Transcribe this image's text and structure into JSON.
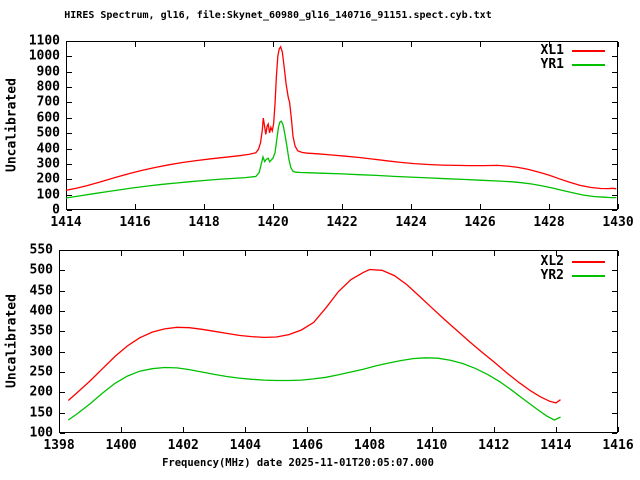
{
  "title": "HIRES Spectrum, gl16, file:Skynet_60980_gl16_140716_91151.spect.cyb.txt",
  "xlabel": "Frequency(MHz) date 2025-11-01T20:05:07.000",
  "colors": {
    "background": "#ffffff",
    "axis": "#000000",
    "text": "#000000",
    "series_red": "#ff0000",
    "series_green": "#00c000"
  },
  "chart_data": [
    {
      "type": "line",
      "title": "",
      "xlabel": "",
      "ylabel": "Uncalibrated",
      "xlim": [
        1414,
        1430
      ],
      "ylim": [
        0,
        1100
      ],
      "xticks": [
        1414,
        1416,
        1418,
        1420,
        1422,
        1424,
        1426,
        1428,
        1430
      ],
      "yticks": [
        0,
        100,
        200,
        300,
        400,
        500,
        600,
        700,
        800,
        900,
        1000,
        1100
      ],
      "grid": false,
      "legend_position": "top-right",
      "series": [
        {
          "name": "XL1",
          "color": "#ff0000",
          "points": [
            [
              1414.0,
              128
            ],
            [
              1414.3,
              141
            ],
            [
              1414.6,
              158
            ],
            [
              1415.0,
              183
            ],
            [
              1415.4,
              210
            ],
            [
              1415.8,
              235
            ],
            [
              1416.2,
              258
            ],
            [
              1416.6,
              277
            ],
            [
              1417.0,
              295
            ],
            [
              1417.4,
              310
            ],
            [
              1417.8,
              322
            ],
            [
              1418.2,
              333
            ],
            [
              1418.6,
              343
            ],
            [
              1419.0,
              353
            ],
            [
              1419.3,
              362
            ],
            [
              1419.5,
              372
            ],
            [
              1419.58,
              395
            ],
            [
              1419.64,
              440
            ],
            [
              1419.69,
              520
            ],
            [
              1419.72,
              598
            ],
            [
              1419.76,
              540
            ],
            [
              1419.79,
              492
            ],
            [
              1419.83,
              545
            ],
            [
              1419.86,
              560
            ],
            [
              1419.9,
              502
            ],
            [
              1419.94,
              538
            ],
            [
              1419.98,
              515
            ],
            [
              1420.02,
              565
            ],
            [
              1420.06,
              700
            ],
            [
              1420.1,
              870
            ],
            [
              1420.14,
              1000
            ],
            [
              1420.18,
              1048
            ],
            [
              1420.22,
              1062
            ],
            [
              1420.27,
              1030
            ],
            [
              1420.32,
              940
            ],
            [
              1420.38,
              820
            ],
            [
              1420.44,
              735
            ],
            [
              1420.48,
              700
            ],
            [
              1420.53,
              600
            ],
            [
              1420.58,
              480
            ],
            [
              1420.64,
              415
            ],
            [
              1420.72,
              385
            ],
            [
              1420.85,
              374
            ],
            [
              1421.0,
              370
            ],
            [
              1421.3,
              366
            ],
            [
              1421.7,
              358
            ],
            [
              1422.1,
              350
            ],
            [
              1422.5,
              342
            ],
            [
              1422.9,
              331
            ],
            [
              1423.3,
              320
            ],
            [
              1423.7,
              310
            ],
            [
              1424.1,
              302
            ],
            [
              1424.5,
              296
            ],
            [
              1424.9,
              292
            ],
            [
              1425.3,
              290
            ],
            [
              1425.7,
              289
            ],
            [
              1426.1,
              289
            ],
            [
              1426.5,
              290
            ],
            [
              1426.8,
              286
            ],
            [
              1427.1,
              277
            ],
            [
              1427.4,
              264
            ],
            [
              1427.7,
              247
            ],
            [
              1428.0,
              227
            ],
            [
              1428.3,
              203
            ],
            [
              1428.6,
              180
            ],
            [
              1428.9,
              160
            ],
            [
              1429.2,
              147
            ],
            [
              1429.5,
              140
            ],
            [
              1429.7,
              139
            ],
            [
              1429.85,
              141
            ],
            [
              1429.95,
              138
            ]
          ]
        },
        {
          "name": "YR1",
          "color": "#00c000",
          "points": [
            [
              1414.0,
              78
            ],
            [
              1414.4,
              92
            ],
            [
              1414.8,
              106
            ],
            [
              1415.2,
              120
            ],
            [
              1415.6,
              133
            ],
            [
              1416.0,
              146
            ],
            [
              1416.4,
              157
            ],
            [
              1416.8,
              167
            ],
            [
              1417.2,
              176
            ],
            [
              1417.6,
              184
            ],
            [
              1418.0,
              192
            ],
            [
              1418.4,
              199
            ],
            [
              1418.8,
              205
            ],
            [
              1419.2,
              211
            ],
            [
              1419.5,
              218
            ],
            [
              1419.6,
              245
            ],
            [
              1419.66,
              300
            ],
            [
              1419.71,
              345
            ],
            [
              1419.76,
              315
            ],
            [
              1419.81,
              330
            ],
            [
              1419.86,
              337
            ],
            [
              1419.9,
              314
            ],
            [
              1419.95,
              326
            ],
            [
              1420.0,
              338
            ],
            [
              1420.06,
              375
            ],
            [
              1420.11,
              460
            ],
            [
              1420.16,
              540
            ],
            [
              1420.2,
              572
            ],
            [
              1420.24,
              578
            ],
            [
              1420.29,
              555
            ],
            [
              1420.34,
              500
            ],
            [
              1420.4,
              420
            ],
            [
              1420.46,
              330
            ],
            [
              1420.52,
              275
            ],
            [
              1420.58,
              252
            ],
            [
              1420.66,
              246
            ],
            [
              1420.8,
              244
            ],
            [
              1421.1,
              242
            ],
            [
              1421.5,
              239
            ],
            [
              1422.0,
              235
            ],
            [
              1422.5,
              230
            ],
            [
              1423.0,
              225
            ],
            [
              1423.5,
              219
            ],
            [
              1424.0,
              214
            ],
            [
              1424.5,
              209
            ],
            [
              1425.0,
              204
            ],
            [
              1425.5,
              199
            ],
            [
              1426.0,
              194
            ],
            [
              1426.5,
              189
            ],
            [
              1426.9,
              184
            ],
            [
              1427.2,
              178
            ],
            [
              1427.5,
              169
            ],
            [
              1427.8,
              157
            ],
            [
              1428.1,
              143
            ],
            [
              1428.4,
              127
            ],
            [
              1428.7,
              111
            ],
            [
              1429.0,
              97
            ],
            [
              1429.3,
              88
            ],
            [
              1429.6,
              83
            ],
            [
              1429.8,
              81
            ],
            [
              1429.95,
              81
            ]
          ]
        }
      ]
    },
    {
      "type": "line",
      "title": "",
      "xlabel": "Frequency(MHz) date 2025-11-01T20:05:07.000",
      "ylabel": "Uncalibrated",
      "xlim": [
        1398,
        1416
      ],
      "ylim": [
        100,
        550
      ],
      "xticks": [
        1398,
        1400,
        1402,
        1404,
        1406,
        1408,
        1410,
        1412,
        1414,
        1416
      ],
      "yticks": [
        100,
        150,
        200,
        250,
        300,
        350,
        400,
        450,
        500,
        550
      ],
      "grid": false,
      "legend_position": "top-right",
      "series": [
        {
          "name": "XL2",
          "color": "#ff0000",
          "points": [
            [
              1398.3,
              180
            ],
            [
              1398.6,
              200
            ],
            [
              1399.0,
              228
            ],
            [
              1399.4,
              258
            ],
            [
              1399.8,
              288
            ],
            [
              1400.2,
              314
            ],
            [
              1400.6,
              334
            ],
            [
              1401.0,
              348
            ],
            [
              1401.4,
              356
            ],
            [
              1401.8,
              360
            ],
            [
              1402.2,
              359
            ],
            [
              1402.6,
              355
            ],
            [
              1403.0,
              350
            ],
            [
              1403.4,
              345
            ],
            [
              1403.8,
              340
            ],
            [
              1404.2,
              337
            ],
            [
              1404.6,
              335
            ],
            [
              1405.0,
              336
            ],
            [
              1405.4,
              342
            ],
            [
              1405.8,
              353
            ],
            [
              1406.2,
              372
            ],
            [
              1406.6,
              408
            ],
            [
              1407.0,
              448
            ],
            [
              1407.4,
              477
            ],
            [
              1407.8,
              495
            ],
            [
              1408.0,
              502
            ],
            [
              1408.4,
              500
            ],
            [
              1408.8,
              487
            ],
            [
              1409.2,
              465
            ],
            [
              1409.6,
              437
            ],
            [
              1410.0,
              408
            ],
            [
              1410.4,
              380
            ],
            [
              1410.8,
              353
            ],
            [
              1411.2,
              326
            ],
            [
              1411.6,
              300
            ],
            [
              1412.0,
              275
            ],
            [
              1412.4,
              249
            ],
            [
              1412.8,
              225
            ],
            [
              1413.2,
              203
            ],
            [
              1413.5,
              189
            ],
            [
              1413.8,
              178
            ],
            [
              1414.0,
              174
            ],
            [
              1414.15,
              182
            ]
          ]
        },
        {
          "name": "YR2",
          "color": "#00c000",
          "points": [
            [
              1398.3,
              132
            ],
            [
              1398.6,
              148
            ],
            [
              1399.0,
              172
            ],
            [
              1399.4,
              198
            ],
            [
              1399.8,
              222
            ],
            [
              1400.2,
              240
            ],
            [
              1400.6,
              252
            ],
            [
              1401.0,
              258
            ],
            [
              1401.4,
              261
            ],
            [
              1401.8,
              260
            ],
            [
              1402.2,
              256
            ],
            [
              1402.6,
              250
            ],
            [
              1403.0,
              244
            ],
            [
              1403.4,
              239
            ],
            [
              1403.8,
              235
            ],
            [
              1404.2,
              232
            ],
            [
              1404.6,
              230
            ],
            [
              1405.0,
              229
            ],
            [
              1405.4,
              229
            ],
            [
              1405.8,
              230
            ],
            [
              1406.2,
              233
            ],
            [
              1406.6,
              237
            ],
            [
              1407.0,
              243
            ],
            [
              1407.4,
              250
            ],
            [
              1407.8,
              257
            ],
            [
              1408.2,
              265
            ],
            [
              1408.6,
              272
            ],
            [
              1409.0,
              278
            ],
            [
              1409.4,
              283
            ],
            [
              1409.8,
              285
            ],
            [
              1410.2,
              284
            ],
            [
              1410.6,
              279
            ],
            [
              1411.0,
              271
            ],
            [
              1411.4,
              259
            ],
            [
              1411.8,
              244
            ],
            [
              1412.2,
              226
            ],
            [
              1412.6,
              204
            ],
            [
              1413.0,
              181
            ],
            [
              1413.4,
              158
            ],
            [
              1413.7,
              142
            ],
            [
              1413.95,
              132
            ],
            [
              1414.15,
              139
            ]
          ]
        }
      ]
    }
  ]
}
